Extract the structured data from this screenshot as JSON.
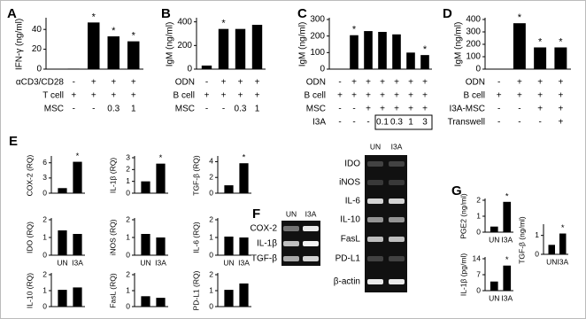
{
  "chart_data": [
    {
      "type": "bar",
      "panel": "A",
      "ylabel": "IFN-γ (ng/ml)",
      "values": [
        0.5,
        47,
        33,
        28
      ],
      "ylim": [
        0,
        50
      ],
      "yticks": [
        0,
        20,
        40
      ],
      "color": "#000000",
      "significance": [
        null,
        "*",
        "*",
        "*"
      ],
      "rows": [
        {
          "label": "αCD3/CD28",
          "values": [
            "-",
            "+",
            "+",
            "+"
          ]
        },
        {
          "label": "T cell",
          "values": [
            "+",
            "+",
            "+",
            "+"
          ]
        },
        {
          "label": "MSC",
          "values": [
            "-",
            "-",
            "0.3",
            "1"
          ]
        }
      ]
    },
    {
      "type": "bar",
      "panel": "B",
      "ylabel": "IgM (ng/ml)",
      "values": [
        30,
        340,
        340,
        375
      ],
      "ylim": [
        0,
        420
      ],
      "yticks": [
        0,
        200,
        400
      ],
      "color": "#000000",
      "significance": [
        null,
        "*",
        null,
        null
      ],
      "rows": [
        {
          "label": "ODN",
          "values": [
            "-",
            "+",
            "+",
            "+"
          ]
        },
        {
          "label": "B cell",
          "values": [
            "+",
            "+",
            "+",
            "+"
          ]
        },
        {
          "label": "MSC",
          "values": [
            "-",
            "-",
            "0.3",
            "1"
          ]
        }
      ]
    },
    {
      "type": "bar",
      "panel": "C",
      "ylabel": "IgM (ng/ml)",
      "values": [
        2,
        205,
        230,
        225,
        210,
        100,
        85
      ],
      "ylim": [
        0,
        300
      ],
      "yticks": [
        0,
        100,
        200,
        300
      ],
      "color": "#000000",
      "significance": [
        null,
        "*",
        null,
        null,
        null,
        null,
        "*"
      ],
      "rows": [
        {
          "label": "ODN",
          "values": [
            "-",
            "+",
            "+",
            "+",
            "+",
            "+",
            "+"
          ]
        },
        {
          "label": "B cell",
          "values": [
            "+",
            "+",
            "+",
            "+",
            "+",
            "+",
            "+"
          ]
        },
        {
          "label": "MSC",
          "values": [
            "-",
            "-",
            "+",
            "+",
            "+",
            "+",
            "+"
          ]
        },
        {
          "label": "I3A",
          "values": [
            "-",
            "-",
            "-",
            "0.1",
            "0.3",
            "1",
            "3"
          ]
        }
      ]
    },
    {
      "type": "bar",
      "panel": "D",
      "ylabel": "IgM (ng/ml)",
      "values": [
        2,
        370,
        175,
        175
      ],
      "ylim": [
        0,
        400
      ],
      "yticks": [
        0,
        100,
        200,
        300,
        400
      ],
      "color": "#000000",
      "significance": [
        null,
        "*",
        "*",
        "*"
      ],
      "rows": [
        {
          "label": "ODN",
          "values": [
            "-",
            "+",
            "+",
            "+"
          ]
        },
        {
          "label": "B cell",
          "values": [
            "+",
            "+",
            "+",
            "+"
          ]
        },
        {
          "label": "I3A-MSC",
          "values": [
            "-",
            "-",
            "+",
            "+"
          ]
        },
        {
          "label": "Transwell",
          "values": [
            "-",
            "-",
            "-",
            "+"
          ]
        }
      ]
    },
    {
      "type": "bar",
      "panel": "E",
      "ylabel": "COX-2 (RQ)",
      "values": [
        1,
        6.2
      ],
      "ylim": [
        0,
        7
      ],
      "yticks": [
        0,
        3,
        6
      ],
      "color": "#000000",
      "significance": [
        null,
        "*"
      ]
    },
    {
      "type": "bar",
      "ylabel": "IL-1β (RQ)",
      "values": [
        1,
        2.5
      ],
      "ylim": [
        0,
        3
      ],
      "yticks": [
        0,
        1,
        2,
        3
      ],
      "color": "#000000",
      "significance": [
        null,
        "*"
      ]
    },
    {
      "type": "bar",
      "ylabel": "TGF-β (RQ)",
      "values": [
        1,
        3.8
      ],
      "ylim": [
        0,
        4.5
      ],
      "yticks": [
        0,
        2,
        4
      ],
      "color": "#000000",
      "significance": [
        null,
        "*"
      ]
    },
    {
      "type": "bar",
      "ylabel": "IDO (RQ)",
      "categories": [
        "UN",
        "I3A"
      ],
      "values": [
        1.4,
        1.2
      ],
      "ylim": [
        0,
        2
      ],
      "yticks": [
        0,
        1,
        2
      ],
      "color": "#000000"
    },
    {
      "type": "bar",
      "ylabel": "iNOS (RQ)",
      "categories": [
        "UN",
        "I3A"
      ],
      "values": [
        1.2,
        1.0
      ],
      "ylim": [
        0,
        2
      ],
      "yticks": [
        0,
        1,
        2
      ],
      "color": "#000000"
    },
    {
      "type": "bar",
      "ylabel": "IL-6 (RQ)",
      "categories": [
        "UN",
        "I3A"
      ],
      "values": [
        1.05,
        1.0
      ],
      "ylim": [
        0,
        2
      ],
      "yticks": [
        0,
        1,
        2
      ],
      "color": "#000000"
    },
    {
      "type": "bar",
      "ylabel": "IL-10 (RQ)",
      "values": [
        1.05,
        1.2
      ],
      "ylim": [
        0,
        2
      ],
      "yticks": [
        0,
        1,
        2
      ],
      "color": "#000000"
    },
    {
      "type": "bar",
      "ylabel": "FasL (RQ)",
      "values": [
        0.65,
        0.55
      ],
      "ylim": [
        0,
        2
      ],
      "yticks": [
        0,
        1,
        2
      ],
      "color": "#000000"
    },
    {
      "type": "bar",
      "ylabel": "PD-L1 (RQ)",
      "values": [
        1.05,
        1.45
      ],
      "ylim": [
        0,
        2
      ],
      "yticks": [
        0,
        1,
        2
      ],
      "color": "#000000"
    },
    {
      "type": "bar",
      "panel": "G",
      "ylabel": "PGE2 (ng/ml)",
      "categories": [
        "UN",
        "I3A"
      ],
      "values": [
        0.35,
        1.9
      ],
      "ylim": [
        0,
        2
      ],
      "yticks": [
        0,
        1,
        2
      ],
      "color": "#000000",
      "significance": [
        null,
        "*"
      ]
    },
    {
      "type": "bar",
      "ylabel": "IL-1β (pg/ml)",
      "categories": [
        "UN",
        "I3A"
      ],
      "values": [
        4,
        11
      ],
      "ylim": [
        0,
        14
      ],
      "yticks": [
        0,
        7,
        14
      ],
      "color": "#000000",
      "significance": [
        null,
        "*"
      ]
    },
    {
      "type": "bar",
      "ylabel": "TGF-β (ng/ml)",
      "categories": [
        "UN",
        "I3A"
      ],
      "values": [
        0.5,
        1.1
      ],
      "ylim": [
        0,
        1.5
      ],
      "yticks": [
        0,
        1
      ],
      "color": "#000000",
      "significance": [
        null,
        "*"
      ]
    }
  ],
  "gel_panel": {
    "panel": "F",
    "blot1": {
      "lanes": [
        "UN",
        "I3A"
      ],
      "genes": [
        "COX-2",
        "IL-1β",
        "TGF-β"
      ]
    },
    "blot2": {
      "lanes": [
        "UN",
        "I3A"
      ],
      "genes": [
        "IDO",
        "iNOS",
        "IL-6",
        "IL-10",
        "FasL",
        "PD-L1",
        "β-actin"
      ]
    }
  }
}
